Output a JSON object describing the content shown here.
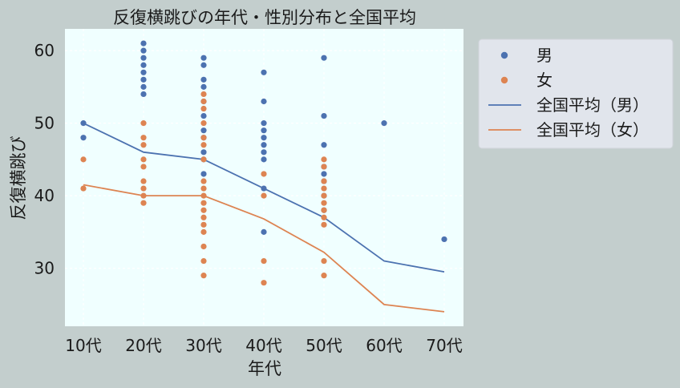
{
  "chart_data": {
    "type": "scatter",
    "title": "反復横跳びの年代・性別分布と全国平均",
    "xlabel": "年代",
    "ylabel": "反復横跳び",
    "categories": [
      "10代",
      "20代",
      "30代",
      "40代",
      "50代",
      "60代",
      "70代"
    ],
    "ylim": [
      22,
      63
    ],
    "yticks": [
      30,
      40,
      50,
      60
    ],
    "grid": true,
    "legend_position": "outside-right",
    "series": [
      {
        "name": "男",
        "kind": "scatter",
        "color": "#4c72b0",
        "points": [
          [
            "10代",
            50
          ],
          [
            "10代",
            48
          ],
          [
            "20代",
            61
          ],
          [
            "20代",
            60
          ],
          [
            "20代",
            59
          ],
          [
            "20代",
            58
          ],
          [
            "20代",
            57
          ],
          [
            "20代",
            56
          ],
          [
            "20代",
            55
          ],
          [
            "20代",
            54
          ],
          [
            "30代",
            59
          ],
          [
            "30代",
            58
          ],
          [
            "30代",
            56
          ],
          [
            "30代",
            55
          ],
          [
            "30代",
            53
          ],
          [
            "30代",
            51
          ],
          [
            "30代",
            49
          ],
          [
            "30代",
            48
          ],
          [
            "30代",
            46
          ],
          [
            "30代",
            45
          ],
          [
            "30代",
            43
          ],
          [
            "40代",
            57
          ],
          [
            "40代",
            53
          ],
          [
            "40代",
            50
          ],
          [
            "40代",
            49
          ],
          [
            "40代",
            48
          ],
          [
            "40代",
            47
          ],
          [
            "40代",
            46
          ],
          [
            "40代",
            45
          ],
          [
            "40代",
            41
          ],
          [
            "40代",
            35
          ],
          [
            "50代",
            59
          ],
          [
            "50代",
            51
          ],
          [
            "50代",
            47
          ],
          [
            "50代",
            44
          ],
          [
            "50代",
            43
          ],
          [
            "50代",
            42
          ],
          [
            "50代",
            40
          ],
          [
            "50代",
            38
          ],
          [
            "60代",
            50
          ],
          [
            "70代",
            34
          ]
        ]
      },
      {
        "name": "女",
        "kind": "scatter",
        "color": "#dd8452",
        "points": [
          [
            "10代",
            45
          ],
          [
            "10代",
            41
          ],
          [
            "20代",
            50
          ],
          [
            "20代",
            48
          ],
          [
            "20代",
            47
          ],
          [
            "20代",
            45
          ],
          [
            "20代",
            44
          ],
          [
            "20代",
            42
          ],
          [
            "20代",
            41
          ],
          [
            "20代",
            40
          ],
          [
            "20代",
            39
          ],
          [
            "30代",
            54
          ],
          [
            "30代",
            53
          ],
          [
            "30代",
            52
          ],
          [
            "30代",
            50
          ],
          [
            "30代",
            48
          ],
          [
            "30代",
            47
          ],
          [
            "30代",
            45
          ],
          [
            "30代",
            42
          ],
          [
            "30代",
            41
          ],
          [
            "30代",
            40
          ],
          [
            "30代",
            39
          ],
          [
            "30代",
            38
          ],
          [
            "30代",
            37
          ],
          [
            "30代",
            36
          ],
          [
            "30代",
            35
          ],
          [
            "30代",
            33
          ],
          [
            "30代",
            31
          ],
          [
            "30代",
            29
          ],
          [
            "40代",
            43
          ],
          [
            "40代",
            40
          ],
          [
            "40代",
            31
          ],
          [
            "40代",
            28
          ],
          [
            "50代",
            45
          ],
          [
            "50代",
            44
          ],
          [
            "50代",
            42
          ],
          [
            "50代",
            41
          ],
          [
            "50代",
            40
          ],
          [
            "50代",
            39
          ],
          [
            "50代",
            38
          ],
          [
            "50代",
            37
          ],
          [
            "50代",
            36
          ],
          [
            "50代",
            31
          ],
          [
            "50代",
            29
          ]
        ]
      },
      {
        "name": "全国平均（男）",
        "kind": "line",
        "color": "#4c72b0",
        "values": [
          50,
          46,
          45,
          41,
          37,
          31,
          29.5
        ]
      },
      {
        "name": "全国平均（女）",
        "kind": "line",
        "color": "#dd8452",
        "values": [
          41.5,
          40,
          40,
          36.8,
          32.2,
          25,
          24
        ]
      }
    ]
  },
  "colors": {
    "figure_bg": "#c3cecd",
    "plot_bg": "#f0ffff",
    "grid": "#ffffff",
    "legend_bg": "#e1e5ec"
  }
}
